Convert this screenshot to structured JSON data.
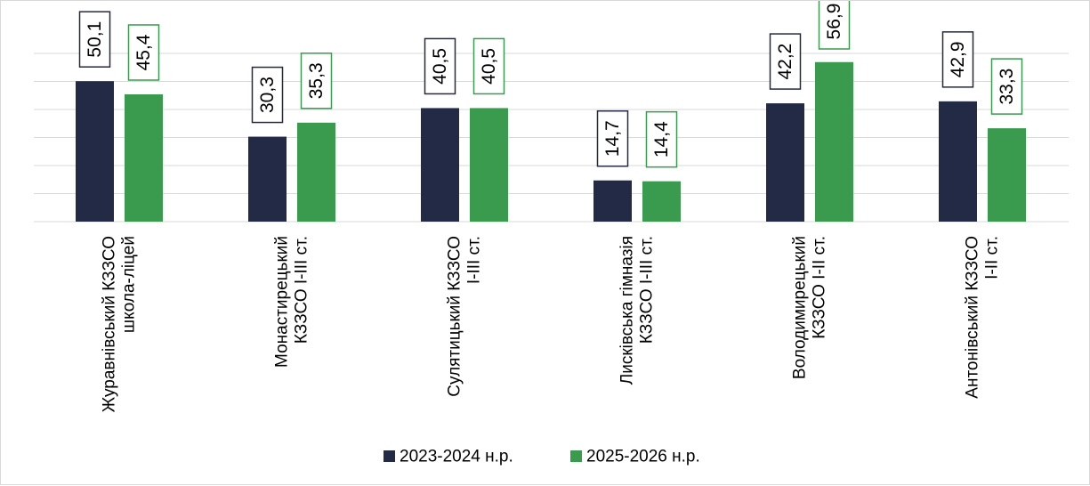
{
  "chart_data": {
    "type": "bar",
    "title": "",
    "xlabel": "",
    "ylabel": "",
    "ylim": [
      0,
      60
    ],
    "grid": true,
    "legend_position": "bottom",
    "categories": [
      [
        "Журавнівський КЗЗСО",
        "школа-ліцей"
      ],
      [
        "Монастирецький",
        "КЗЗСО  І-ІІІ ст."
      ],
      [
        "Сулятицький КЗЗСО",
        "І-ІІІ ст."
      ],
      [
        "Лисківська гімназія",
        "КЗЗСО І-ІІІ ст."
      ],
      [
        "Володимирецький",
        "КЗЗСО І-ІІ ст."
      ],
      [
        "Антонівський КЗЗСО",
        "І-ІІ ст."
      ]
    ],
    "series": [
      {
        "name": "2023-2024 н.р.",
        "color": "#222a46",
        "values": [
          50.1,
          30.3,
          40.5,
          14.7,
          42.2,
          42.9
        ],
        "labels": [
          "50,1",
          "30,3",
          "40,5",
          "14,7",
          "42,2",
          "42,9"
        ]
      },
      {
        "name": "2025-2026 н.р.",
        "color": "#3a9a4e",
        "values": [
          45.4,
          35.3,
          40.5,
          14.4,
          56.9,
          33.3
        ],
        "labels": [
          "45,4",
          "35,3",
          "40,5",
          "14,4",
          "56,9",
          "33,3"
        ]
      }
    ]
  }
}
